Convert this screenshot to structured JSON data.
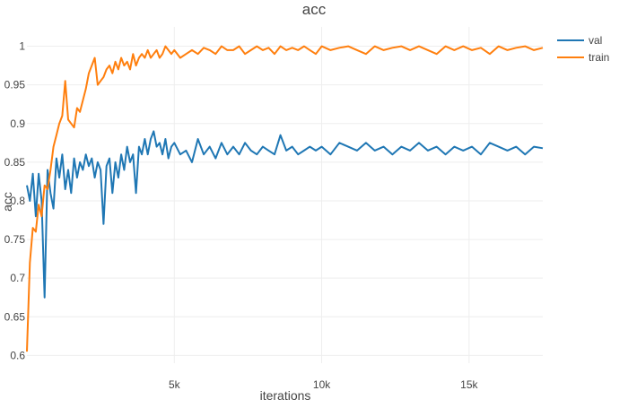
{
  "chart_data": {
    "type": "line",
    "title": "acc",
    "xlabel": "iterations",
    "ylabel": "acc",
    "xlim": [
      0,
      17500
    ],
    "ylim": [
      0.59,
      1.025
    ],
    "x_ticks": [
      5000,
      10000,
      15000
    ],
    "x_tick_labels": [
      "5k",
      "10k",
      "15k"
    ],
    "y_ticks": [
      0.6,
      0.65,
      0.7,
      0.75,
      0.8,
      0.85,
      0.9,
      0.95,
      1
    ],
    "y_tick_labels": [
      "0.6",
      "0.65",
      "0.7",
      "0.75",
      "0.8",
      "0.85",
      "0.9",
      "0.95",
      "1"
    ],
    "grid": true,
    "legend_position": "top-right",
    "series": [
      {
        "name": "val",
        "color": "#1f77b4",
        "x": [
          0,
          100,
          200,
          300,
          400,
          500,
          600,
          700,
          800,
          900,
          1000,
          1100,
          1200,
          1300,
          1400,
          1500,
          1600,
          1700,
          1800,
          1900,
          2000,
          2100,
          2200,
          2300,
          2400,
          2500,
          2600,
          2700,
          2800,
          2900,
          3000,
          3100,
          3200,
          3300,
          3400,
          3500,
          3600,
          3700,
          3800,
          3900,
          4000,
          4100,
          4200,
          4300,
          4400,
          4500,
          4600,
          4700,
          4800,
          4900,
          5000,
          5200,
          5400,
          5600,
          5800,
          6000,
          6200,
          6400,
          6600,
          6800,
          7000,
          7200,
          7400,
          7600,
          7800,
          8000,
          8200,
          8400,
          8600,
          8800,
          9000,
          9200,
          9400,
          9600,
          9800,
          10000,
          10300,
          10600,
          10900,
          11200,
          11500,
          11800,
          12100,
          12400,
          12700,
          13000,
          13300,
          13600,
          13900,
          14200,
          14500,
          14800,
          15100,
          15400,
          15700,
          16000,
          16300,
          16600,
          16900,
          17200,
          17500
        ],
        "y": [
          0.82,
          0.8,
          0.835,
          0.78,
          0.835,
          0.8,
          0.675,
          0.84,
          0.81,
          0.79,
          0.855,
          0.83,
          0.86,
          0.815,
          0.84,
          0.81,
          0.855,
          0.83,
          0.85,
          0.84,
          0.86,
          0.845,
          0.855,
          0.83,
          0.85,
          0.84,
          0.77,
          0.845,
          0.855,
          0.81,
          0.85,
          0.83,
          0.86,
          0.84,
          0.87,
          0.85,
          0.86,
          0.81,
          0.87,
          0.86,
          0.88,
          0.86,
          0.88,
          0.89,
          0.87,
          0.875,
          0.86,
          0.88,
          0.855,
          0.87,
          0.875,
          0.86,
          0.865,
          0.85,
          0.88,
          0.86,
          0.87,
          0.855,
          0.875,
          0.86,
          0.87,
          0.86,
          0.875,
          0.865,
          0.86,
          0.87,
          0.865,
          0.86,
          0.885,
          0.865,
          0.87,
          0.86,
          0.865,
          0.87,
          0.865,
          0.87,
          0.86,
          0.875,
          0.87,
          0.865,
          0.875,
          0.865,
          0.87,
          0.86,
          0.87,
          0.865,
          0.875,
          0.865,
          0.87,
          0.86,
          0.87,
          0.865,
          0.87,
          0.86,
          0.875,
          0.87,
          0.865,
          0.87,
          0.86,
          0.87,
          0.868
        ]
      },
      {
        "name": "train",
        "color": "#ff7f0e",
        "x": [
          0,
          100,
          200,
          300,
          400,
          500,
          600,
          700,
          800,
          900,
          1000,
          1100,
          1200,
          1300,
          1400,
          1500,
          1600,
          1700,
          1800,
          1900,
          2000,
          2100,
          2200,
          2300,
          2400,
          2500,
          2600,
          2700,
          2800,
          2900,
          3000,
          3100,
          3200,
          3300,
          3400,
          3500,
          3600,
          3700,
          3800,
          3900,
          4000,
          4100,
          4200,
          4300,
          4400,
          4500,
          4600,
          4700,
          4800,
          4900,
          5000,
          5200,
          5400,
          5600,
          5800,
          6000,
          6200,
          6400,
          6600,
          6800,
          7000,
          7200,
          7400,
          7600,
          7800,
          8000,
          8200,
          8400,
          8600,
          8800,
          9000,
          9200,
          9400,
          9600,
          9800,
          10000,
          10300,
          10600,
          10900,
          11200,
          11500,
          11800,
          12100,
          12400,
          12700,
          13000,
          13300,
          13600,
          13900,
          14200,
          14500,
          14800,
          15100,
          15400,
          15700,
          16000,
          16300,
          16600,
          16900,
          17200,
          17500
        ],
        "y": [
          0.605,
          0.72,
          0.765,
          0.76,
          0.795,
          0.78,
          0.82,
          0.815,
          0.84,
          0.87,
          0.885,
          0.9,
          0.91,
          0.955,
          0.905,
          0.9,
          0.895,
          0.92,
          0.915,
          0.93,
          0.945,
          0.965,
          0.975,
          0.985,
          0.95,
          0.955,
          0.96,
          0.97,
          0.975,
          0.965,
          0.98,
          0.97,
          0.985,
          0.975,
          0.98,
          0.97,
          0.99,
          0.975,
          0.985,
          0.99,
          0.985,
          0.995,
          0.985,
          0.99,
          0.995,
          0.985,
          0.99,
          1.0,
          0.995,
          0.99,
          0.995,
          0.985,
          0.99,
          0.995,
          0.99,
          0.998,
          0.995,
          0.99,
          1.0,
          0.995,
          0.995,
          1.0,
          0.99,
          0.995,
          1.0,
          0.995,
          0.998,
          0.99,
          1.0,
          0.995,
          0.998,
          0.995,
          1.0,
          0.995,
          0.99,
          1.0,
          0.995,
          0.998,
          1.0,
          0.995,
          0.99,
          1.0,
          0.995,
          0.998,
          1.0,
          0.995,
          1.0,
          0.995,
          0.99,
          1.0,
          0.995,
          1.0,
          0.995,
          0.998,
          0.99,
          1.0,
          0.995,
          0.998,
          1.0,
          0.995,
          0.998
        ]
      }
    ]
  }
}
